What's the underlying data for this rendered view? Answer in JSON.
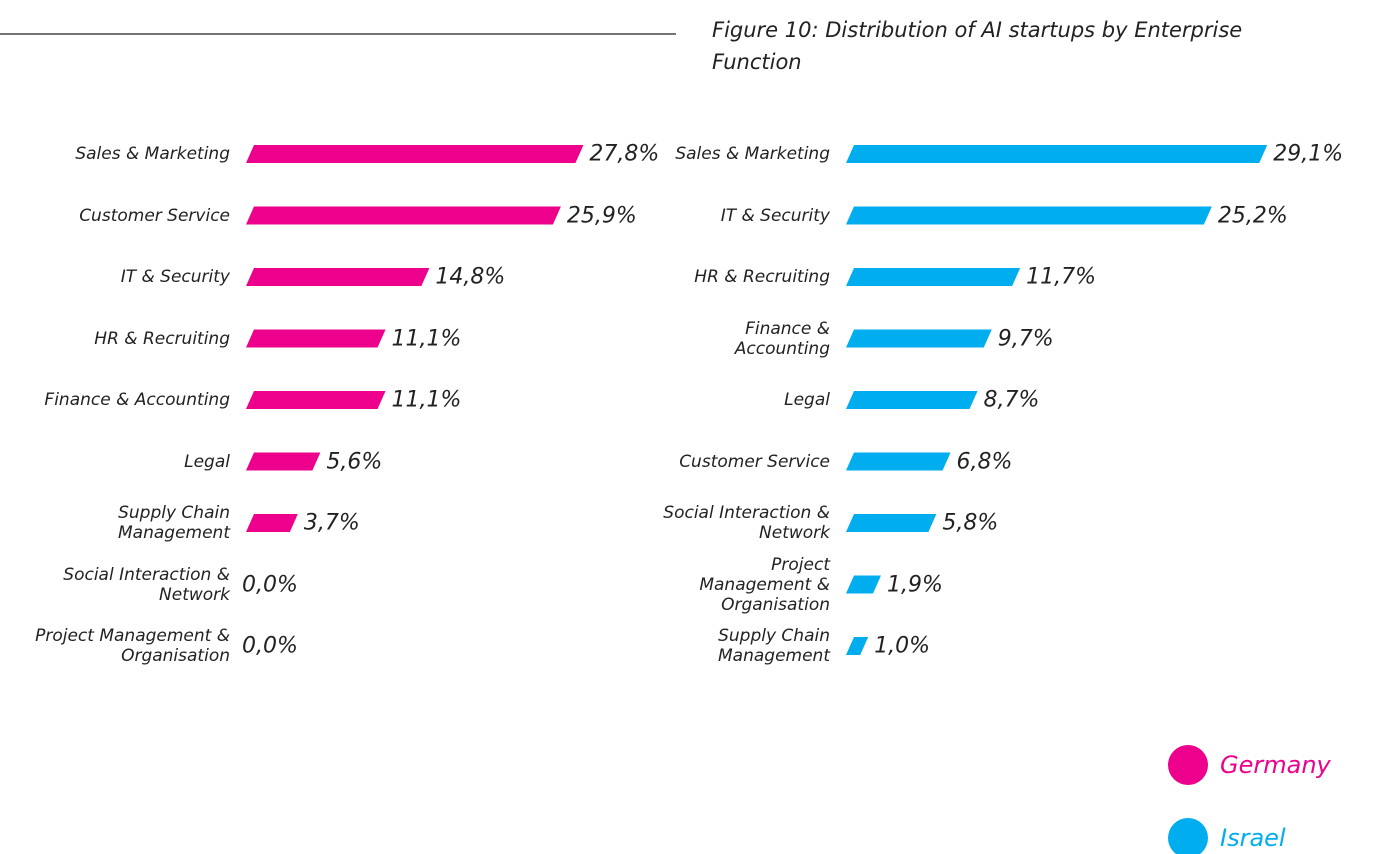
{
  "title": "Figure 10: Distribution of AI startups by Enterprise Function",
  "chart_data": [
    {
      "type": "bar",
      "name": "Germany",
      "color": "#ec008c",
      "categories": [
        "Sales & Marketing",
        "Customer Service",
        "IT & Security",
        "HR & Recruiting",
        "Finance & Accounting",
        "Legal",
        "Supply Chain Management",
        "Social Interaction & Network",
        "Project Management & Organisation"
      ],
      "values": [
        27.8,
        25.9,
        14.8,
        11.1,
        11.1,
        5.6,
        3.7,
        0.0,
        0.0
      ],
      "value_labels": [
        "27,8%",
        "25,9%",
        "14,8%",
        "11,1%",
        "11,1%",
        "5,6%",
        "3,7%",
        "0,0%",
        "0,0%"
      ]
    },
    {
      "type": "bar",
      "name": "Israel",
      "color": "#00aeef",
      "categories": [
        "Sales & Marketing",
        "IT & Security",
        "HR & Recruiting",
        "Finance & Accounting",
        "Legal",
        "Customer Service",
        "Social Interaction & Network",
        "Project Management & Organisation",
        "Supply Chain Management"
      ],
      "values": [
        29.1,
        25.2,
        11.7,
        9.7,
        8.7,
        6.8,
        5.8,
        1.9,
        1.0
      ],
      "value_labels": [
        "29,1%",
        "25,2%",
        "11,7%",
        "9,7%",
        "8,7%",
        "6,8%",
        "5,8%",
        "1,9%",
        "1,0%"
      ]
    }
  ]
}
